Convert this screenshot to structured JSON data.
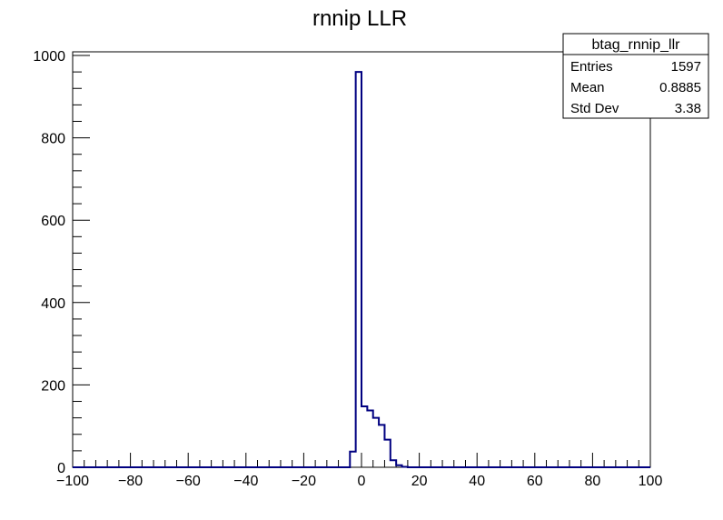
{
  "chart_data": {
    "type": "histogram",
    "title": "rnnip LLR",
    "xlim": [
      -100,
      100
    ],
    "ylim": [
      0,
      1000
    ],
    "x_ticks": [
      -100,
      -80,
      -60,
      -40,
      -20,
      0,
      20,
      40,
      60,
      80,
      100
    ],
    "x_tick_labels": [
      "−100",
      "−80",
      "−60",
      "−40",
      "−20",
      "0",
      "20",
      "40",
      "60",
      "80",
      "100"
    ],
    "y_ticks": [
      0,
      200,
      400,
      600,
      800,
      1000
    ],
    "y_tick_labels": [
      "0",
      "200",
      "400",
      "600",
      "800",
      "1000"
    ],
    "bin_width": 2,
    "series": [
      {
        "bins": [
          {
            "x0": -4,
            "x1": -2,
            "count": 38
          },
          {
            "x0": -2,
            "x1": 0,
            "count": 960
          },
          {
            "x0": 0,
            "x1": 2,
            "count": 148
          },
          {
            "x0": 2,
            "x1": 4,
            "count": 138
          },
          {
            "x0": 4,
            "x1": 6,
            "count": 120
          },
          {
            "x0": 6,
            "x1": 8,
            "count": 103
          },
          {
            "x0": 8,
            "x1": 10,
            "count": 67
          },
          {
            "x0": 10,
            "x1": 12,
            "count": 17
          },
          {
            "x0": 12,
            "x1": 14,
            "count": 5
          },
          {
            "x0": 14,
            "x1": 16,
            "count": 1
          }
        ],
        "color": "#000080"
      }
    ],
    "stats_box": {
      "name": "btag_rnnip_llr",
      "rows": [
        {
          "label": "Entries",
          "value": "1597"
        },
        {
          "label": "Mean",
          "value": "0.8885"
        },
        {
          "label": "Std Dev",
          "value": "3.38"
        }
      ]
    }
  }
}
